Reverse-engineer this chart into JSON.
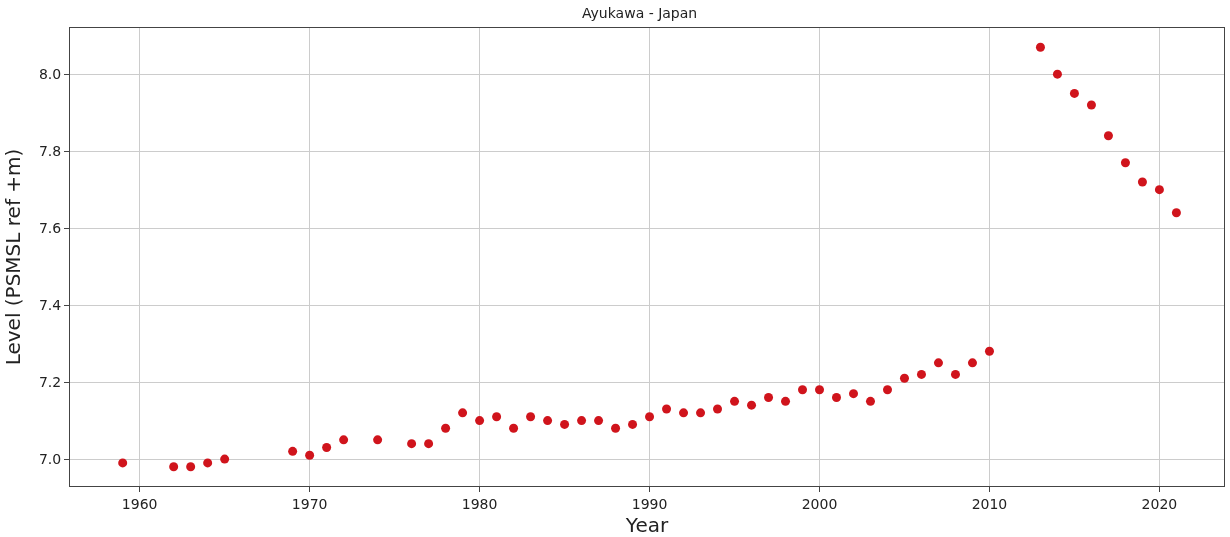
{
  "chart_data": {
    "type": "scatter",
    "title": "Ayukawa - Japan",
    "xlabel": "Year",
    "ylabel": "Level (PSMSL ref +m)",
    "x": [
      1959,
      1962,
      1963,
      1964,
      1965,
      1969,
      1970,
      1971,
      1972,
      1974,
      1976,
      1977,
      1978,
      1979,
      1980,
      1981,
      1982,
      1983,
      1984,
      1985,
      1986,
      1987,
      1988,
      1989,
      1990,
      1991,
      1992,
      1993,
      1994,
      1995,
      1996,
      1997,
      1998,
      1999,
      2000,
      2001,
      2002,
      2003,
      2004,
      2005,
      2006,
      2007,
      2008,
      2009,
      2010,
      2013,
      2014,
      2015,
      2016,
      2017,
      2018,
      2019,
      2020,
      2021
    ],
    "series": [
      {
        "color": "#d0141c",
        "values": [
          6.99,
          6.98,
          6.98,
          6.99,
          7.0,
          7.02,
          7.01,
          7.03,
          7.05,
          7.05,
          7.04,
          7.04,
          7.08,
          7.12,
          7.1,
          7.11,
          7.08,
          7.11,
          7.1,
          7.09,
          7.1,
          7.1,
          7.08,
          7.09,
          7.11,
          7.13,
          7.12,
          7.12,
          7.13,
          7.15,
          7.14,
          7.16,
          7.15,
          7.18,
          7.18,
          7.16,
          7.17,
          7.15,
          7.18,
          7.21,
          7.22,
          7.25,
          7.22,
          7.25,
          7.28,
          8.07,
          8.0,
          7.95,
          7.92,
          7.84,
          7.77,
          7.72,
          7.7,
          7.64
        ]
      }
    ],
    "xlim": [
      1955.9,
      2023.8
    ],
    "xticks": [
      1960,
      1970,
      1980,
      1990,
      2000,
      2010,
      2020
    ],
    "ylim": [
      6.93,
      8.12
    ],
    "yticks": [
      {
        "value": 7.0,
        "label": "7.0"
      },
      {
        "value": 7.2,
        "label": "7.2"
      },
      {
        "value": 7.4,
        "label": "7.4"
      },
      {
        "value": 7.6,
        "label": "7.6"
      },
      {
        "value": 7.8,
        "label": "7.8"
      },
      {
        "value": 8.0,
        "label": "8.0"
      }
    ],
    "grid": true,
    "marker": "circle"
  }
}
